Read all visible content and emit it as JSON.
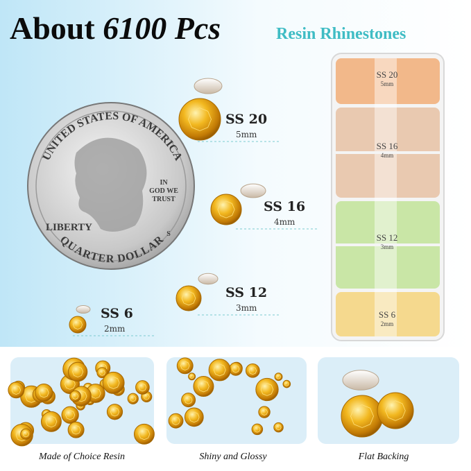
{
  "header": {
    "title": "About",
    "count": "6100 Pcs",
    "subtitle": "Resin Rhinestones"
  },
  "coin": {
    "top": "UNITED STATES OF AMERICA",
    "left": "LIBERTY",
    "motto": [
      "IN",
      "GOD WE",
      "TRUST"
    ],
    "mint": "S",
    "bottom": "QUARTER DOLLAR"
  },
  "sizes": [
    {
      "label": "SS 20",
      "mm": "5mm"
    },
    {
      "label": "SS 16",
      "mm": "4mm"
    },
    {
      "label": "SS 12",
      "mm": "3mm"
    },
    {
      "label": "SS 6",
      "mm": "2mm"
    }
  ],
  "box": [
    {
      "label": "SS 20",
      "mm": "5mm"
    },
    {
      "label": "SS 16",
      "mm": "4mm"
    },
    {
      "label": "SS 12",
      "mm": "3mm"
    },
    {
      "label": "SS 6",
      "mm": "2mm"
    }
  ],
  "captions": [
    "Made of Choice Resin",
    "Shiny and Glossy",
    "Flat Backing"
  ]
}
